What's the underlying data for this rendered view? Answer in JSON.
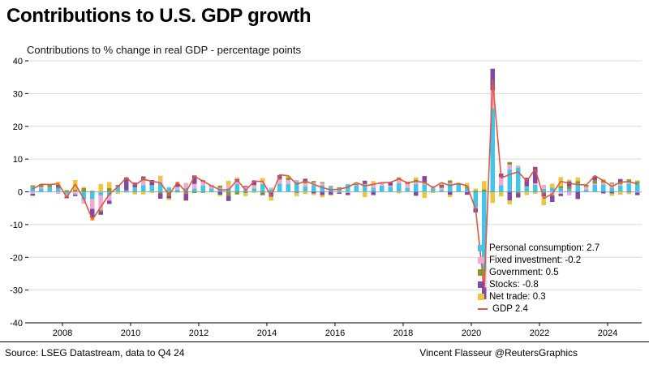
{
  "footer": {
    "source": "Source: LSEG Datastream, data to Q4 24",
    "credit": "Vincent Flasseur @ReutersGraphics"
  },
  "chart_data": {
    "type": "bar",
    "stacked": true,
    "title": "Contributions to U.S. GDP growth",
    "subtitle": "Contributions to % change in real GDP - percentage points",
    "xlabel": "",
    "ylabel": "",
    "xlim": [
      2007,
      2025
    ],
    "ylim": [
      -40,
      40
    ],
    "x_step": 0.25,
    "x_tick_years": [
      2008,
      2010,
      2012,
      2014,
      2016,
      2018,
      2020,
      2022,
      2024
    ],
    "y_ticks": [
      -40,
      -30,
      -20,
      -10,
      0,
      10,
      20,
      30,
      40
    ],
    "grid": true,
    "legend_position": "inside-lower-right",
    "x_start_label": "2007 Q1",
    "x_end_label": "2024 Q4",
    "series": [
      {
        "name": "Personal consumption",
        "legend_label": "Personal consumption: 2.7",
        "type": "bar",
        "color": "#41c5e8",
        "values": [
          1.6,
          1.0,
          1.4,
          1.0,
          -0.5,
          0.1,
          -2.4,
          -2.2,
          -1.1,
          -1.1,
          1.5,
          0.5,
          1.2,
          2.0,
          1.8,
          2.6,
          1.3,
          0.7,
          1.2,
          1.0,
          1.9,
          1.0,
          1.0,
          1.1,
          2.4,
          0.6,
          1.0,
          2.4,
          0.8,
          2.5,
          2.4,
          3.2,
          1.6,
          2.0,
          2.0,
          1.5,
          1.1,
          2.3,
          1.9,
          1.9,
          1.3,
          1.9,
          1.5,
          2.6,
          1.2,
          2.4,
          2.3,
          1.1,
          0.5,
          2.5,
          2.1,
          1.2,
          -4.8,
          -24.0,
          25.5,
          2.0,
          6.8,
          7.4,
          1.4,
          2.1,
          0.9,
          1.3,
          1.1,
          0.8,
          2.5,
          0.6,
          2.1,
          2.2,
          1.3,
          1.9,
          2.5,
          2.7
        ]
      },
      {
        "name": "Fixed investment",
        "legend_label": "Fixed investment: -0.2",
        "type": "bar",
        "color": "#f4a8d2",
        "values": [
          -0.6,
          0.4,
          -0.2,
          -0.6,
          -1.0,
          -0.8,
          -1.2,
          -3.0,
          -4.4,
          -1.6,
          0.1,
          -0.1,
          0.1,
          1.4,
          0.1,
          0.9,
          0.2,
          0.8,
          1.5,
          1.4,
          1.2,
          0.7,
          0.2,
          0.8,
          0.6,
          0.9,
          1.0,
          0.6,
          0.5,
          1.2,
          1.2,
          0.4,
          1.0,
          0.8,
          0.7,
          0.1,
          -0.2,
          -0.2,
          0.1,
          0.3,
          1.3,
          0.6,
          0.4,
          1.3,
          1.1,
          0.9,
          0.2,
          0.5,
          0.6,
          0.2,
          0.0,
          -0.1,
          -0.2,
          -5.2,
          5.5,
          2.5,
          1.5,
          0.6,
          0.1,
          0.5,
          1.2,
          -0.9,
          -0.6,
          -1.1,
          0.0,
          0.9,
          0.4,
          0.6,
          1.2,
          0.4,
          0.4,
          -0.2
        ]
      },
      {
        "name": "Government",
        "legend_label": "Government: 0.5",
        "type": "bar",
        "color": "#8d9430",
        "values": [
          0.3,
          0.7,
          0.7,
          0.4,
          0.5,
          0.6,
          1.0,
          0.3,
          -0.5,
          1.2,
          0.3,
          -0.1,
          -0.2,
          0.8,
          0.1,
          -0.5,
          -1.2,
          -0.2,
          -0.6,
          -0.4,
          -0.3,
          -0.1,
          0.7,
          -1.2,
          -0.8,
          -0.4,
          0.1,
          -0.7,
          -0.2,
          0.3,
          0.8,
          -0.1,
          0.4,
          0.5,
          0.3,
          0.2,
          0.3,
          -0.1,
          0.1,
          0.2,
          0.0,
          0.0,
          0.0,
          0.4,
          0.3,
          0.4,
          0.4,
          0.0,
          0.5,
          0.8,
          0.4,
          0.4,
          0.4,
          0.8,
          -0.2,
          -0.1,
          0.8,
          -0.4,
          0.2,
          -0.2,
          -0.5,
          -0.3,
          0.7,
          0.9,
          0.8,
          0.6,
          1.0,
          0.8,
          0.3,
          0.5,
          0.9,
          0.5
        ]
      },
      {
        "name": "Stocks",
        "legend_label": "Stocks: -0.8",
        "type": "bar",
        "color": "#8348a2",
        "values": [
          -0.6,
          0.2,
          0.0,
          0.7,
          -0.4,
          -0.5,
          0.1,
          -2.6,
          -1.0,
          -1.0,
          0.2,
          3.9,
          1.5,
          0.5,
          1.6,
          -1.6,
          -0.8,
          1.0,
          -2.0,
          2.6,
          0.4,
          0.3,
          -0.9,
          -1.6,
          0.9,
          0.3,
          1.4,
          -0.3,
          -1.3,
          1.1,
          0.0,
          -0.2,
          1.0,
          -0.5,
          -1.0,
          -0.9,
          -0.4,
          -0.7,
          0.2,
          1.0,
          -1.0,
          0.1,
          1.0,
          0.1,
          0.3,
          -1.2,
          1.9,
          0.1,
          0.5,
          -0.9,
          0.0,
          -0.8,
          -1.3,
          -3.6,
          6.6,
          1.1,
          -2.6,
          -1.3,
          2.6,
          5.0,
          -0.9,
          -1.9,
          -0.7,
          1.5,
          -2.2,
          0.0,
          1.3,
          -0.5,
          -0.5,
          1.1,
          -0.2,
          -0.8
        ]
      },
      {
        "name": "Net trade",
        "legend_label": "Net trade: 0.3",
        "type": "bar",
        "color": "#edc63e",
        "values": [
          0.2,
          0.0,
          0.3,
          1.0,
          -0.2,
          2.9,
          0.4,
          -1.0,
          2.4,
          1.8,
          -0.6,
          0.1,
          -0.6,
          -0.8,
          -0.4,
          1.4,
          -0.5,
          0.6,
          -0.2,
          0.1,
          0.1,
          -0.1,
          -0.4,
          1.5,
          0.5,
          -0.9,
          -0.3,
          1.2,
          -1.2,
          0.1,
          0.5,
          -1.0,
          -0.7,
          -0.5,
          -0.7,
          -0.3,
          0.0,
          0.1,
          0.5,
          -1.6,
          0.7,
          0.2,
          0.0,
          -0.5,
          -0.1,
          0.7,
          -1.9,
          -0.4,
          0.7,
          -0.7,
          0.1,
          1.1,
          0.6,
          2.5,
          -3.2,
          -1.3,
          -1.2,
          -0.2,
          -1.0,
          -0.4,
          -2.7,
          1.2,
          2.7,
          0.5,
          1.1,
          0.0,
          0.1,
          0.3,
          -0.7,
          -0.9,
          -0.5,
          0.3
        ]
      },
      {
        "name": "GDP",
        "legend_label": "GDP 2.4",
        "type": "line",
        "color": "#e2573d",
        "values": [
          0.9,
          2.3,
          2.2,
          2.5,
          -1.6,
          2.3,
          -2.1,
          -8.5,
          -4.6,
          -0.7,
          1.5,
          4.3,
          2.0,
          3.9,
          3.2,
          2.8,
          -1.0,
          2.9,
          -0.1,
          4.7,
          3.3,
          1.8,
          0.6,
          0.6,
          3.6,
          0.5,
          3.2,
          3.2,
          -1.4,
          5.2,
          4.9,
          2.3,
          3.3,
          2.3,
          1.3,
          0.6,
          0.8,
          1.4,
          2.8,
          1.8,
          2.3,
          2.8,
          2.9,
          3.9,
          2.8,
          3.2,
          2.9,
          1.3,
          2.8,
          1.9,
          2.6,
          1.8,
          -5.3,
          -29.5,
          34.2,
          4.2,
          5.3,
          6.1,
          3.3,
          7.0,
          -2.0,
          -0.6,
          3.2,
          2.6,
          2.2,
          2.1,
          4.9,
          3.4,
          1.6,
          3.0,
          3.1,
          2.4
        ]
      }
    ]
  }
}
